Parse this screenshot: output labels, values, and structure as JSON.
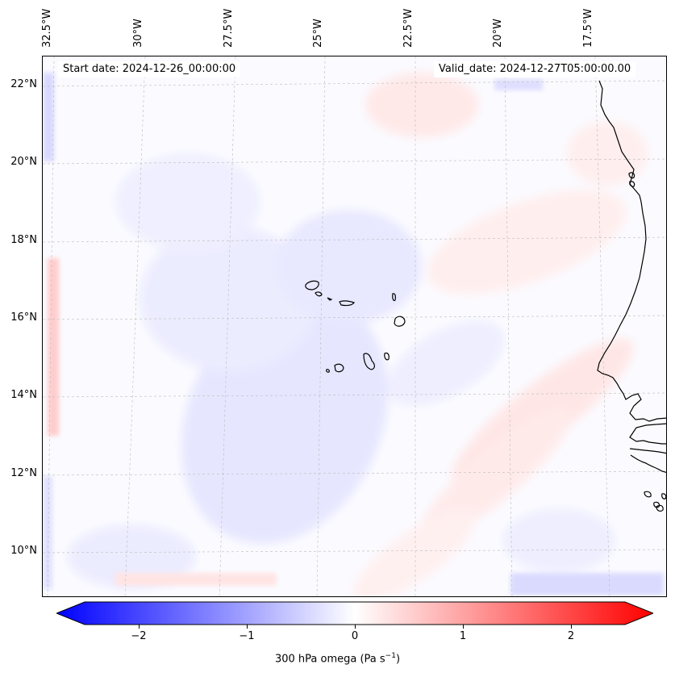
{
  "map": {
    "start_date": "Start date: 2024-12-26_00:00:00",
    "valid_date": "Valid_date: 2024-12-27T05:00:00.00",
    "lon_labels": [
      "32.5°W",
      "30°W",
      "27.5°W",
      "25°W",
      "22.5°W",
      "20°W",
      "17.5°W"
    ],
    "lat_labels": [
      "22°N",
      "20°N",
      "18°N",
      "16°N",
      "14°N",
      "12°N",
      "10°N"
    ],
    "field_colors": {
      "neutral": "#fbfbff",
      "weak_negative": "#e8e8ff",
      "weak_positive": "#ffecec",
      "moderate_negative": "#d6d6ff",
      "moderate_positive": "#ffd6d6"
    },
    "coastline_color": "#000000"
  },
  "colorbar": {
    "label": "300 hPa omega (Pa s",
    "label_sup": "−1",
    "label_end": ")",
    "ticks": [
      "−2",
      "−1",
      "0",
      "1",
      "2"
    ],
    "min": -2.6,
    "max": 2.6,
    "colors": {
      "low": "#0000ff",
      "mid": "#ffffff",
      "high": "#ff0000"
    }
  }
}
